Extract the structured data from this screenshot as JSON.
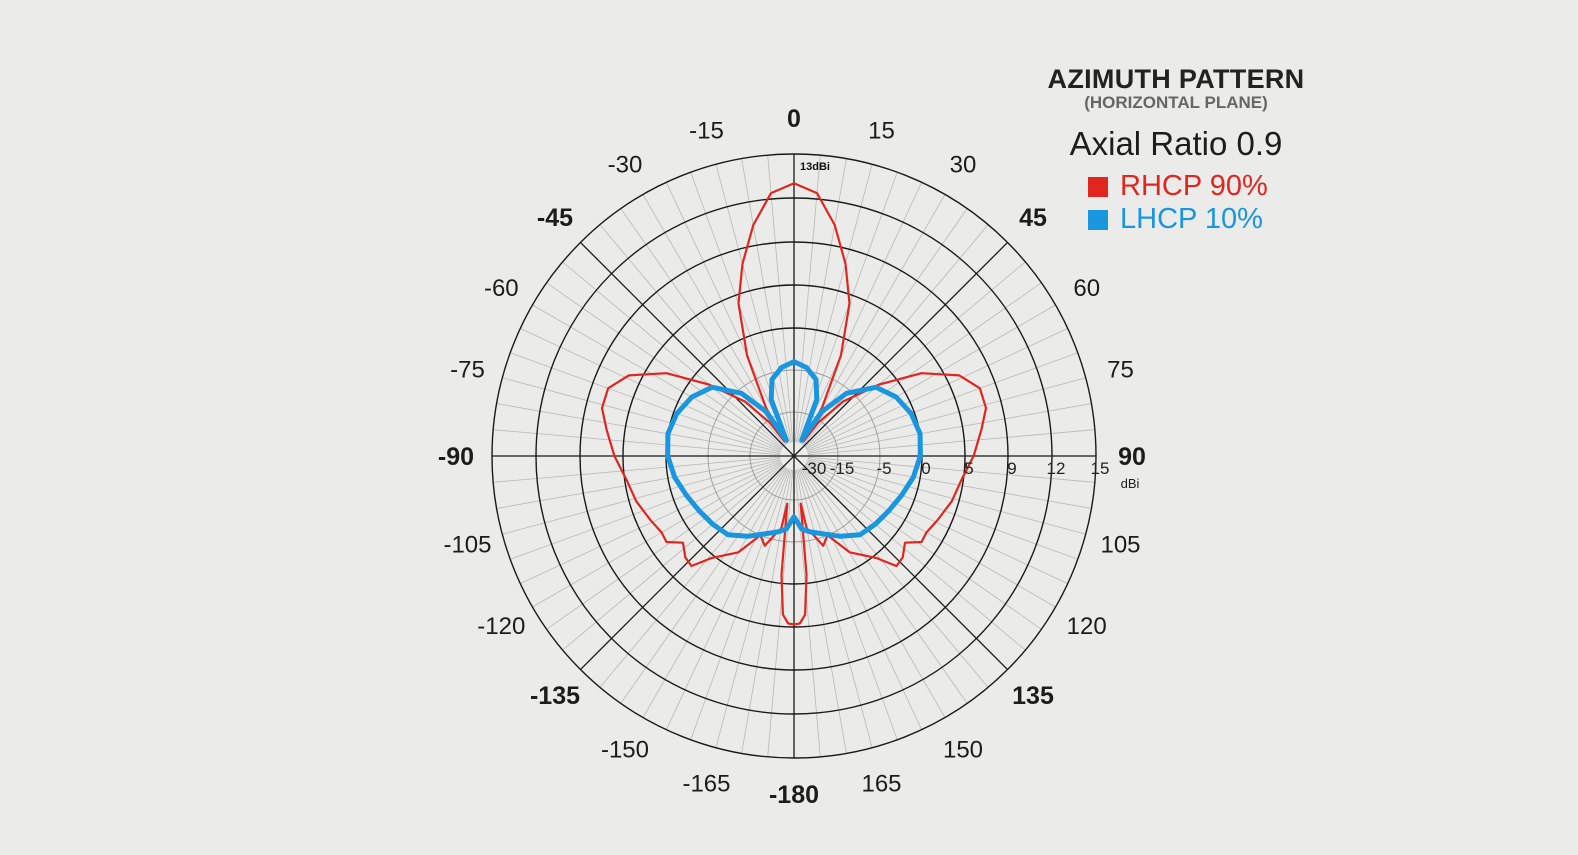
{
  "title": "AZIMUTH PATTERN",
  "subtitle": "(HORIZONTAL PLANE)",
  "axial_ratio": "Axial Ratio 0.9",
  "colors": {
    "rhcp": "#e0261f",
    "lhcp": "#1a96de",
    "grid": "#1a1a1a",
    "minor_grid": "#b8b8b8",
    "background": "#ebebea"
  },
  "chart_data": {
    "type": "polar-line",
    "title": "AZIMUTH PATTERN",
    "subtitle": "(HORIZONTAL PLANE)",
    "annotation": "Axial Ratio 0.9",
    "top_label": "13dBi",
    "radial_unit": "dBi",
    "radial_ticks": [
      "-30",
      "-15",
      "-5",
      "0",
      "5",
      "9",
      "12",
      "15"
    ],
    "angle_ticks": [
      {
        "angle": 0,
        "label": "0",
        "bold": true
      },
      {
        "angle": 15,
        "label": "15",
        "bold": false
      },
      {
        "angle": 30,
        "label": "30",
        "bold": false
      },
      {
        "angle": 45,
        "label": "45",
        "bold": true
      },
      {
        "angle": 60,
        "label": "60",
        "bold": false
      },
      {
        "angle": 75,
        "label": "75",
        "bold": false
      },
      {
        "angle": 90,
        "label": "90",
        "bold": true
      },
      {
        "angle": 105,
        "label": "105",
        "bold": false
      },
      {
        "angle": 120,
        "label": "120",
        "bold": false
      },
      {
        "angle": 135,
        "label": "135",
        "bold": true
      },
      {
        "angle": 150,
        "label": "150",
        "bold": false
      },
      {
        "angle": 165,
        "label": "165",
        "bold": false
      },
      {
        "angle": 180,
        "label": "-180",
        "bold": true
      },
      {
        "angle": 195,
        "label": "-165",
        "bold": false
      },
      {
        "angle": 210,
        "label": "-150",
        "bold": false
      },
      {
        "angle": 225,
        "label": "-135",
        "bold": true
      },
      {
        "angle": 240,
        "label": "-120",
        "bold": false
      },
      {
        "angle": 255,
        "label": "-105",
        "bold": false
      },
      {
        "angle": 270,
        "label": "-90",
        "bold": true
      },
      {
        "angle": 285,
        "label": "-75",
        "bold": false
      },
      {
        "angle": 300,
        "label": "-60",
        "bold": false
      },
      {
        "angle": 315,
        "label": "-45",
        "bold": true
      },
      {
        "angle": 330,
        "label": "-30",
        "bold": false
      },
      {
        "angle": 345,
        "label": "-15",
        "bold": false
      }
    ],
    "series": [
      {
        "name": "RHCP 90%",
        "color": "#e0261f",
        "points": [
          [
            0,
            13
          ],
          [
            5,
            12.4
          ],
          [
            10,
            10.4
          ],
          [
            15,
            7.6
          ],
          [
            20,
            4
          ],
          [
            25,
            -2
          ],
          [
            30,
            -12
          ],
          [
            33,
            -24
          ],
          [
            36,
            -16
          ],
          [
            42,
            -8
          ],
          [
            50,
            -2
          ],
          [
            57,
            2.8
          ],
          [
            64,
            6.2
          ],
          [
            70,
            7.5
          ],
          [
            76,
            7.5
          ],
          [
            82,
            6.7
          ],
          [
            90,
            5.8
          ],
          [
            98,
            4.8
          ],
          [
            106,
            4.2
          ],
          [
            114,
            3.4
          ],
          [
            120,
            2.9
          ],
          [
            124,
            3
          ],
          [
            128,
            1.5
          ],
          [
            133,
            2.4
          ],
          [
            137,
            2.6
          ],
          [
            141,
            0.4
          ],
          [
            150,
            -2
          ],
          [
            157,
            -5
          ],
          [
            162,
            -4
          ],
          [
            166,
            -6
          ],
          [
            170,
            -8
          ],
          [
            172,
            -14
          ],
          [
            174,
            -1
          ],
          [
            176,
            3.6
          ],
          [
            178,
            4.6
          ],
          [
            180,
            4.7
          ],
          [
            182,
            4.6
          ],
          [
            184,
            3.6
          ],
          [
            186,
            -1
          ],
          [
            188,
            -14
          ],
          [
            190,
            -8
          ],
          [
            194,
            -6
          ],
          [
            198,
            -4
          ],
          [
            203,
            -5
          ],
          [
            210,
            -2
          ],
          [
            219,
            0.4
          ],
          [
            223,
            2.6
          ],
          [
            227,
            2.4
          ],
          [
            232,
            1.5
          ],
          [
            236,
            3
          ],
          [
            240,
            2.9
          ],
          [
            246,
            3.4
          ],
          [
            254,
            4.2
          ],
          [
            262,
            4.8
          ],
          [
            270,
            5.8
          ],
          [
            278,
            6.7
          ],
          [
            284,
            7.5
          ],
          [
            290,
            7.5
          ],
          [
            296,
            6.2
          ],
          [
            303,
            2.8
          ],
          [
            310,
            -2
          ],
          [
            318,
            -8
          ],
          [
            324,
            -16
          ],
          [
            327,
            -24
          ],
          [
            330,
            -12
          ],
          [
            335,
            -2
          ],
          [
            340,
            4
          ],
          [
            345,
            7.6
          ],
          [
            350,
            10.4
          ],
          [
            355,
            12.4
          ]
        ]
      },
      {
        "name": "LHCP 10%",
        "color": "#1a96de",
        "points": [
          [
            0,
            -4
          ],
          [
            8,
            -4.6
          ],
          [
            16,
            -6.5
          ],
          [
            22,
            -11
          ],
          [
            26,
            -24
          ],
          [
            32,
            -13
          ],
          [
            40,
            -6
          ],
          [
            50,
            -2.5
          ],
          [
            60,
            -1.2
          ],
          [
            70,
            -0.4
          ],
          [
            80,
            0
          ],
          [
            90,
            -0.2
          ],
          [
            100,
            -0.8
          ],
          [
            110,
            -1.6
          ],
          [
            120,
            -2.2
          ],
          [
            130,
            -2.6
          ],
          [
            140,
            -3
          ],
          [
            150,
            -4.2
          ],
          [
            160,
            -5.8
          ],
          [
            168,
            -7
          ],
          [
            174,
            -8
          ],
          [
            180,
            -11
          ],
          [
            186,
            -8
          ],
          [
            192,
            -7
          ],
          [
            200,
            -5.8
          ],
          [
            210,
            -4.2
          ],
          [
            220,
            -3
          ],
          [
            230,
            -2.6
          ],
          [
            240,
            -2.2
          ],
          [
            250,
            -1.6
          ],
          [
            260,
            -0.8
          ],
          [
            270,
            -0.2
          ],
          [
            280,
            0
          ],
          [
            290,
            -0.4
          ],
          [
            300,
            -1.2
          ],
          [
            310,
            -2.5
          ],
          [
            320,
            -6
          ],
          [
            328,
            -13
          ],
          [
            334,
            -24
          ],
          [
            338,
            -11
          ],
          [
            344,
            -6.5
          ],
          [
            352,
            -4.6
          ]
        ]
      }
    ],
    "legend": [
      {
        "label": "RHCP 90%",
        "color": "#e0261f"
      },
      {
        "label": "LHCP 10%",
        "color": "#1a96de"
      }
    ],
    "legend_position": "top-right"
  }
}
